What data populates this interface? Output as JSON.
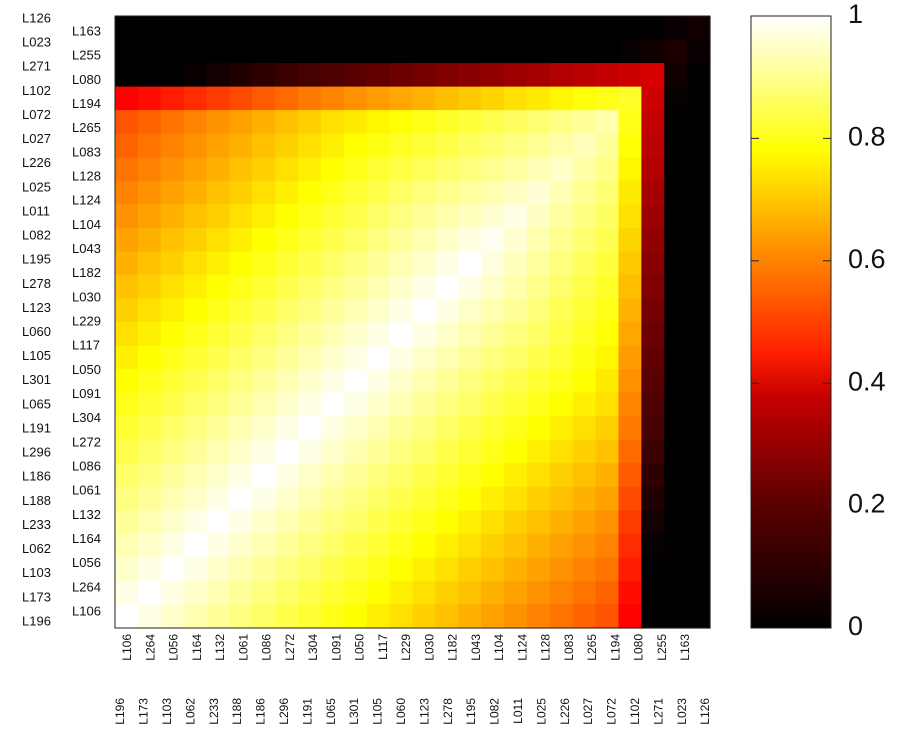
{
  "chart_data": {
    "type": "heatmap",
    "title": "",
    "row_labels_outer": [
      "L126",
      "L023",
      "L271",
      "L102",
      "L072",
      "L027",
      "L226",
      "L025",
      "L011",
      "L082",
      "L195",
      "L278",
      "L123",
      "L060",
      "L105",
      "L301",
      "L065",
      "L191",
      "L296",
      "L186",
      "L188",
      "L233",
      "L062",
      "L103",
      "L173",
      "L196"
    ],
    "row_labels_inner": [
      "L163",
      "L255",
      "L080",
      "L194",
      "L265",
      "L083",
      "L128",
      "L124",
      "L104",
      "L043",
      "L182",
      "L030",
      "L229",
      "L117",
      "L050",
      "L091",
      "L304",
      "L272",
      "L086",
      "L061",
      "L132",
      "L164",
      "L056",
      "L264",
      "L106"
    ],
    "col_labels_inner": [
      "L106",
      "L264",
      "L056",
      "L164",
      "L132",
      "L061",
      "L086",
      "L272",
      "L304",
      "L091",
      "L050",
      "L117",
      "L229",
      "L030",
      "L182",
      "L043",
      "L104",
      "L124",
      "L128",
      "L083",
      "L265",
      "L194",
      "L080",
      "L255",
      "L163"
    ],
    "col_labels_outer": [
      "L196",
      "L173",
      "L103",
      "L062",
      "L233",
      "L188",
      "L186",
      "L296",
      "L191",
      "L065",
      "L301",
      "L105",
      "L060",
      "L123",
      "L278",
      "L195",
      "L082",
      "L011",
      "L025",
      "L226",
      "L027",
      "L072",
      "L102",
      "L271",
      "L023",
      "L126"
    ],
    "color_range": [
      0,
      1
    ],
    "colormap": "hot",
    "colorbar": {
      "ticks": [
        "0",
        "0.2",
        "0.4",
        "0.6",
        "0.8",
        "1"
      ],
      "values": [
        0,
        0.2,
        0.4,
        0.6,
        0.8,
        1
      ]
    },
    "grid": false
  }
}
